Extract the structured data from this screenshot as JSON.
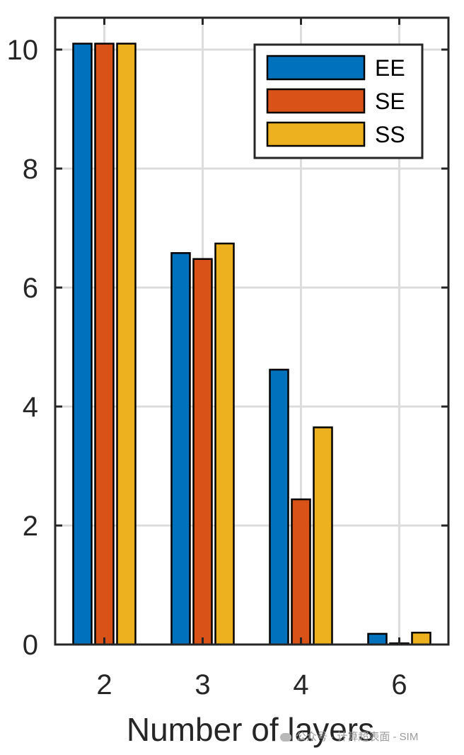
{
  "chart_data": {
    "type": "bar",
    "categories": [
      "2",
      "3",
      "4",
      "6"
    ],
    "series": [
      {
        "name": "EE",
        "color": "#0072BD",
        "values": [
          10.1,
          6.58,
          4.62,
          0.18
        ]
      },
      {
        "name": "SE",
        "color": "#D95319",
        "values": [
          10.1,
          6.48,
          2.44,
          0.02
        ]
      },
      {
        "name": "SS",
        "color": "#EDB120",
        "values": [
          10.1,
          6.74,
          3.65,
          0.2
        ]
      }
    ],
    "xlabel": "Number of layers",
    "ylabel": "",
    "title": "",
    "ylim": [
      0,
      10.5
    ],
    "yticks": [
      0,
      2,
      4,
      6,
      8,
      10
    ],
    "grid": true,
    "legend_position": "top-right"
  },
  "watermark": {
    "text": "公众号 · 计算超表面 - SIM",
    "icon": "wechat-icon"
  }
}
